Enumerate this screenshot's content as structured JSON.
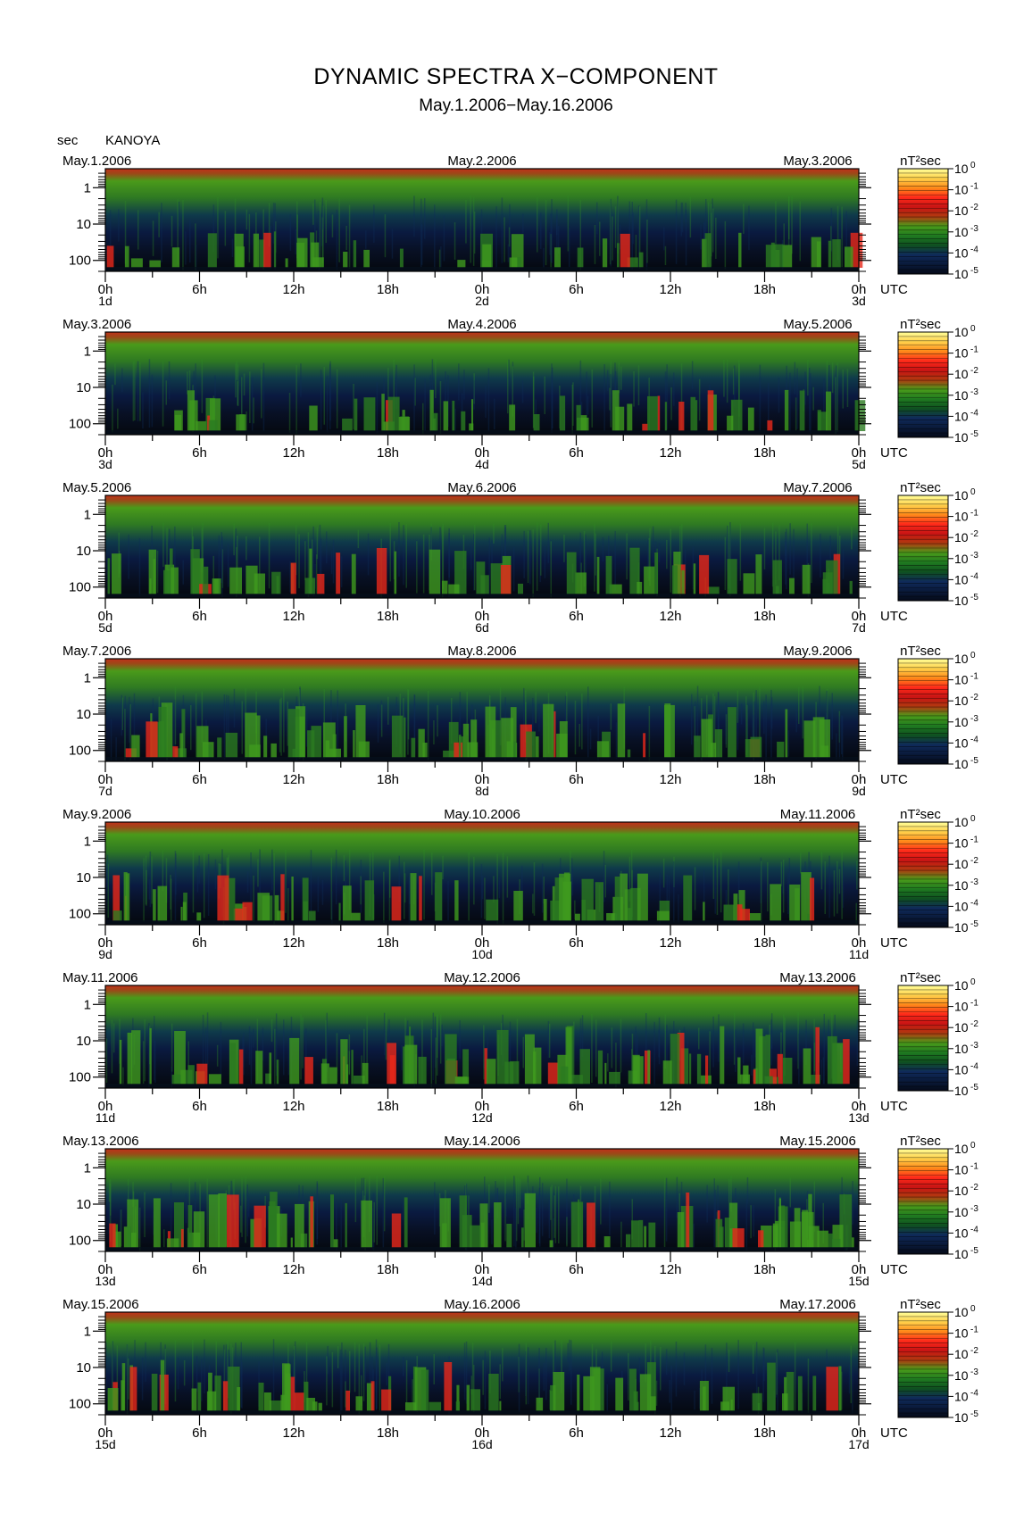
{
  "header": {
    "title": "DYNAMIC SPECTRA X−COMPONENT",
    "subtitle": "May.1.2006−May.16.2006",
    "unit_label": "sec",
    "station": "KANOYA"
  },
  "chart_data": {
    "type": "heatmap",
    "title": "DYNAMIC SPECTRA X−COMPONENT",
    "subtitle": "May.1.2006−May.16.2006",
    "station": "KANOYA",
    "ylabel": "sec",
    "y_scale": "log",
    "y_ticks": [
      "1",
      "10",
      "100"
    ],
    "x_ticks": [
      "0h",
      "6h",
      "12h",
      "18h",
      "0h",
      "6h",
      "12h",
      "18h",
      "0h"
    ],
    "x_unit": "UTC",
    "colorbar": {
      "unit": "nT²sec",
      "scale": "log",
      "ticks": [
        "10^0",
        "10^-1",
        "10^-2",
        "10^-3",
        "10^-4",
        "10^-5"
      ],
      "colors": [
        "#ffff99",
        "#ffd24d",
        "#ff8a1a",
        "#ff2a1a",
        "#c81414",
        "#b03a10",
        "#4a9a1a",
        "#1f7a20",
        "#0f5020",
        "#0f2a5a",
        "#0a1a3a",
        "#050a18"
      ]
    },
    "panels": [
      {
        "dates": [
          "May.1.2006",
          "May.2.2006",
          "May.3.2006"
        ],
        "days": [
          "1d",
          "2d",
          "3d"
        ],
        "activity": 0.25
      },
      {
        "dates": [
          "May.3.2006",
          "May.4.2006",
          "May.5.2006"
        ],
        "days": [
          "3d",
          "4d",
          "5d"
        ],
        "activity": 0.35
      },
      {
        "dates": [
          "May.5.2006",
          "May.6.2006",
          "May.7.2006"
        ],
        "days": [
          "5d",
          "6d",
          "7d"
        ],
        "activity": 0.5
      },
      {
        "dates": [
          "May.7.2006",
          "May.8.2006",
          "May.9.2006"
        ],
        "days": [
          "7d",
          "8d",
          "9d"
        ],
        "activity": 0.7
      },
      {
        "dates": [
          "May.9.2006",
          "May.10.2006",
          "May.11.2006"
        ],
        "days": [
          "9d",
          "10d",
          "11d"
        ],
        "activity": 0.55
      },
      {
        "dates": [
          "May.11.2006",
          "May.12.2006",
          "May.13.2006"
        ],
        "days": [
          "11d",
          "12d",
          "13d"
        ],
        "activity": 0.8
      },
      {
        "dates": [
          "May.13.2006",
          "May.14.2006",
          "May.15.2006"
        ],
        "days": [
          "13d",
          "14d",
          "15d"
        ],
        "activity": 0.75
      },
      {
        "dates": [
          "May.15.2006",
          "May.16.2006",
          "May.17.2006"
        ],
        "days": [
          "15d",
          "16d",
          "17d"
        ],
        "activity": 0.6
      }
    ]
  }
}
